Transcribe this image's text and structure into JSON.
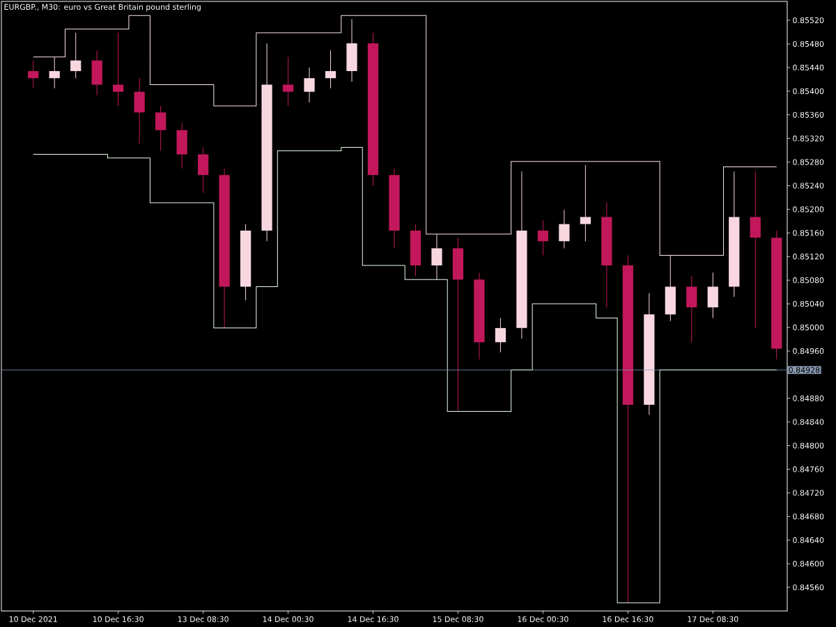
{
  "chart_data": {
    "type": "candlestick",
    "title": "EURGBP., M30:  euro vs Great Britain pound sterling",
    "categories": [
      "10 Dec 2021",
      null,
      null,
      null,
      "10 Dec 16:30",
      null,
      null,
      null,
      "13 Dec 08:30",
      null,
      null,
      null,
      "14 Dec 00:30",
      null,
      null,
      null,
      "14 Dec 16:30",
      null,
      null,
      null,
      "15 Dec 08:30",
      null,
      null,
      null,
      "16 Dec 00:30",
      null,
      null,
      null,
      "16 Dec 16:30",
      null,
      null,
      null,
      "17 Dec 08:30",
      null,
      null,
      null
    ],
    "ohlc": [
      [
        0.85434,
        0.85452,
        0.85405,
        0.85422
      ],
      [
        0.85422,
        0.85458,
        0.85405,
        0.85434
      ],
      [
        0.85434,
        0.85499,
        0.85422,
        0.85452
      ],
      [
        0.85452,
        0.85469,
        0.85393,
        0.85411
      ],
      [
        0.85411,
        0.85499,
        0.85375,
        0.85399
      ],
      [
        0.85399,
        0.85422,
        0.85311,
        0.85364
      ],
      [
        0.85364,
        0.85375,
        0.85299,
        0.85334
      ],
      [
        0.85334,
        0.85346,
        0.85269,
        0.85293
      ],
      [
        0.85293,
        0.85305,
        0.85228,
        0.85258
      ],
      [
        0.85258,
        0.85269,
        0.84999,
        0.85069
      ],
      [
        0.85069,
        0.85175,
        0.85046,
        0.85164
      ],
      [
        0.85164,
        0.85481,
        0.85146,
        0.85411
      ],
      [
        0.85411,
        0.85458,
        0.85375,
        0.85399
      ],
      [
        0.85399,
        0.8544,
        0.85381,
        0.85422
      ],
      [
        0.85422,
        0.85469,
        0.85405,
        0.85434
      ],
      [
        0.85434,
        0.85522,
        0.85416,
        0.85481
      ],
      [
        0.85481,
        0.85499,
        0.8524,
        0.85258
      ],
      [
        0.85258,
        0.85269,
        0.85134,
        0.85164
      ],
      [
        0.85164,
        0.85175,
        0.85087,
        0.85105
      ],
      [
        0.85105,
        0.85158,
        0.85081,
        0.85134
      ],
      [
        0.85134,
        0.85152,
        0.84858,
        0.85081
      ],
      [
        0.85081,
        0.85093,
        0.84946,
        0.84975
      ],
      [
        0.84975,
        0.85016,
        0.84958,
        0.84999
      ],
      [
        0.84999,
        0.85264,
        0.84981,
        0.85164
      ],
      [
        0.85164,
        0.85181,
        0.85122,
        0.85146
      ],
      [
        0.85146,
        0.85199,
        0.85134,
        0.85175
      ],
      [
        0.85175,
        0.85275,
        0.85146,
        0.85187
      ],
      [
        0.85187,
        0.85211,
        0.85034,
        0.85105
      ],
      [
        0.85105,
        0.85122,
        0.84534,
        0.84869
      ],
      [
        0.84869,
        0.85058,
        0.84852,
        0.85022
      ],
      [
        0.85022,
        0.85122,
        0.85011,
        0.85069
      ],
      [
        0.85069,
        0.85087,
        0.84975,
        0.85034
      ],
      [
        0.85034,
        0.85093,
        0.85016,
        0.85069
      ],
      [
        0.85069,
        0.85264,
        0.85052,
        0.85187
      ],
      [
        0.85187,
        0.85264,
        0.84999,
        0.85152
      ],
      [
        0.85152,
        0.85164,
        0.84946,
        0.84964
      ]
    ],
    "colors": [
      "#c2185b",
      "#f8d7e0",
      "#f8d7e0",
      "#c2185b",
      "#c2185b",
      "#c2185b",
      "#c2185b",
      "#c2185b",
      "#c2185b",
      "#c2185b",
      "#f8d7e0",
      "#f8d7e0",
      "#c2185b",
      "#f8d7e0",
      "#f8d7e0",
      "#f8d7e0",
      "#c2185b",
      "#c2185b",
      "#c2185b",
      "#f8d7e0",
      "#c2185b",
      "#c2185b",
      "#f8d7e0",
      "#f8d7e0",
      "#c2185b",
      "#f8d7e0",
      "#f8d7e0",
      "#c2185b",
      "#c2185b",
      "#f8d7e0",
      "#f8d7e0",
      "#c2185b",
      "#f8d7e0",
      "#f8d7e0",
      "#c2185b",
      "#c2185b"
    ],
    "series": [
      {
        "type": "step",
        "color": "#ffe8ea",
        "values": [
          0.85458,
          0.85458,
          0.85505,
          0.85505,
          0.85505,
          0.85528,
          0.85411,
          0.85411,
          0.85411,
          0.85375,
          0.85375,
          0.85499,
          0.85499,
          0.85499,
          0.85499,
          0.85528,
          0.85528,
          0.85528,
          0.85528,
          0.85158,
          0.85158,
          0.85158,
          0.85158,
          0.85281,
          0.85281,
          0.85281,
          0.85281,
          0.85281,
          0.85281,
          0.85281,
          0.85122,
          0.85122,
          0.85122,
          0.85272,
          0.85272,
          0.85272
        ]
      },
      {
        "type": "step",
        "color": "#eaffea",
        "values": [
          0.85293,
          0.85293,
          0.85293,
          0.85293,
          0.85287,
          0.85287,
          0.85211,
          0.85211,
          0.85211,
          0.84999,
          0.84999,
          0.85069,
          0.85299,
          0.85299,
          0.85299,
          0.85305,
          0.85105,
          0.85105,
          0.85081,
          0.85081,
          0.84858,
          0.84858,
          0.84858,
          0.84928,
          0.8504,
          0.8504,
          0.8504,
          0.85016,
          0.84534,
          0.84534,
          0.84928,
          0.84928,
          0.84928,
          0.84928,
          0.84928,
          0.84928
        ]
      }
    ],
    "ylim": [
      0.8452,
      0.85552
    ],
    "yticks": [
      {
        "value": 0.8456,
        "label": "0.84560"
      },
      {
        "value": 0.846,
        "label": "0.84600"
      },
      {
        "value": 0.8464,
        "label": "0.84640"
      },
      {
        "value": 0.8468,
        "label": "0.84680"
      },
      {
        "value": 0.8472,
        "label": "0.84720"
      },
      {
        "value": 0.8476,
        "label": "0.84760"
      },
      {
        "value": 0.848,
        "label": "0.84800"
      },
      {
        "value": 0.8484,
        "label": "0.84840"
      },
      {
        "value": 0.8488,
        "label": "0.84880"
      },
      {
        "value": 0.8496,
        "label": "0.84960"
      },
      {
        "value": 0.85,
        "label": "0.85000"
      },
      {
        "value": 0.8504,
        "label": "0.85040"
      },
      {
        "value": 0.8508,
        "label": "0.85080"
      },
      {
        "value": 0.8512,
        "label": "0.85120"
      },
      {
        "value": 0.8516,
        "label": "0.85160"
      },
      {
        "value": 0.852,
        "label": "0.85200"
      },
      {
        "value": 0.8524,
        "label": "0.85240"
      },
      {
        "value": 0.8528,
        "label": "0.85280"
      },
      {
        "value": 0.8532,
        "label": "0.85320"
      },
      {
        "value": 0.8536,
        "label": "0.85360"
      },
      {
        "value": 0.854,
        "label": "0.85400"
      },
      {
        "value": 0.8544,
        "label": "0.85440"
      },
      {
        "value": 0.8548,
        "label": "0.85480"
      },
      {
        "value": 0.8552,
        "label": "0.85520"
      }
    ],
    "ref_lines": [
      {
        "axis": "y",
        "value": 0.84928,
        "label": "0.84928",
        "color": "#8799b0"
      }
    ]
  }
}
